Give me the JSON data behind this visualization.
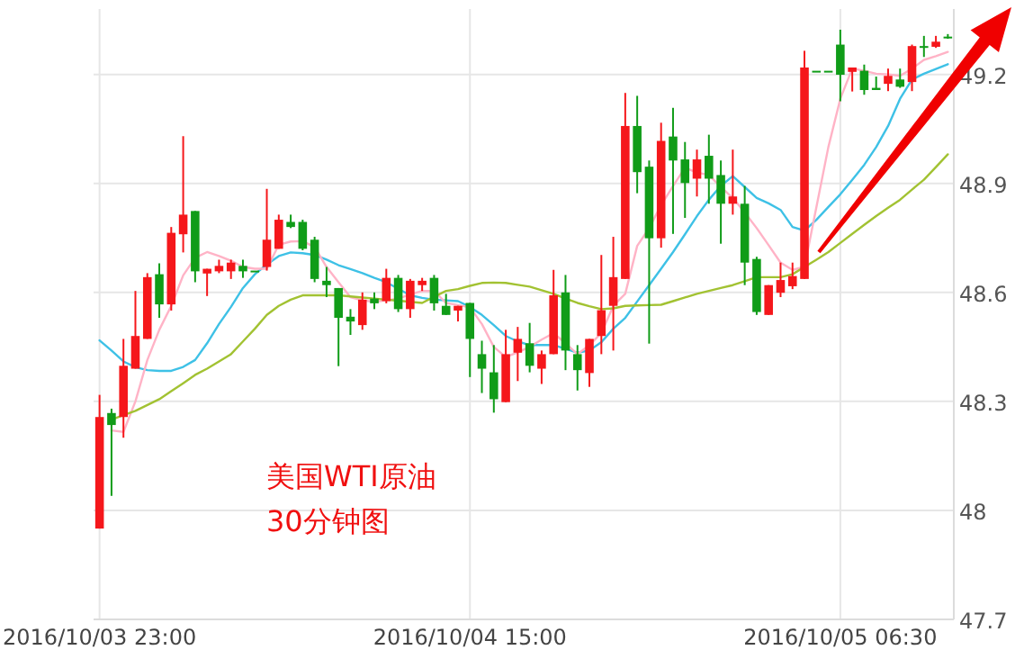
{
  "chart_data": {
    "type": "candlestick",
    "categories": [
      "2016/10/03 23:00",
      null,
      null,
      null,
      null,
      null,
      null,
      null,
      null,
      null,
      null,
      null,
      null,
      null,
      null,
      null,
      null,
      null,
      null,
      null,
      null,
      null,
      null,
      null,
      null,
      null,
      null,
      null,
      null,
      null,
      null,
      "2016/10/04 15:00",
      null,
      null,
      null,
      null,
      null,
      null,
      null,
      null,
      null,
      null,
      null,
      null,
      null,
      null,
      null,
      null,
      null,
      null,
      null,
      null,
      null,
      null,
      null,
      null,
      null,
      null,
      null,
      null,
      null,
      null,
      "2016/10/05 06:30",
      null,
      null,
      null,
      null,
      null,
      null,
      null,
      null,
      null
    ],
    "ohlc": [
      [
        47.95,
        48.318,
        47.95,
        48.257
      ],
      [
        48.268,
        48.28,
        48.04,
        48.235
      ],
      [
        48.257,
        48.472,
        48.2,
        48.398
      ],
      [
        48.39,
        48.604,
        48.39,
        48.48
      ],
      [
        48.472,
        48.653,
        48.472,
        48.642
      ],
      [
        48.65,
        48.68,
        48.53,
        48.567
      ],
      [
        48.567,
        48.78,
        48.55,
        48.764
      ],
      [
        48.76,
        49.03,
        48.71,
        48.814
      ],
      [
        48.824,
        48.824,
        48.628,
        48.658
      ],
      [
        48.652,
        48.665,
        48.59,
        48.665
      ],
      [
        48.658,
        48.69,
        48.653,
        48.673
      ],
      [
        48.658,
        48.69,
        48.637,
        48.682
      ],
      [
        48.673,
        48.69,
        48.64,
        48.658
      ],
      [
        48.66,
        48.66,
        48.66,
        48.66
      ],
      [
        48.67,
        48.885,
        48.66,
        48.745
      ],
      [
        48.72,
        48.814,
        48.72,
        48.8
      ],
      [
        48.794,
        48.814,
        48.777,
        48.78
      ],
      [
        48.794,
        48.8,
        48.716,
        48.72
      ],
      [
        48.745,
        48.753,
        48.628,
        48.637
      ],
      [
        48.632,
        48.67,
        48.587,
        48.62
      ],
      [
        48.612,
        48.612,
        48.397,
        48.53
      ],
      [
        48.533,
        48.554,
        48.483,
        48.52
      ],
      [
        48.51,
        48.6,
        48.497,
        48.58
      ],
      [
        48.583,
        48.6,
        48.554,
        48.57
      ],
      [
        48.576,
        48.665,
        48.57,
        48.64
      ],
      [
        48.64,
        48.648,
        48.546,
        48.554
      ],
      [
        48.554,
        48.637,
        48.53,
        48.632
      ],
      [
        48.62,
        48.64,
        48.604,
        48.632
      ],
      [
        48.64,
        48.648,
        48.55,
        48.57
      ],
      [
        48.563,
        48.596,
        48.538,
        48.538
      ],
      [
        48.55,
        48.563,
        48.52,
        48.563
      ],
      [
        48.571,
        48.571,
        48.367,
        48.472
      ],
      [
        48.43,
        48.467,
        48.323,
        48.39
      ],
      [
        48.38,
        48.455,
        48.269,
        48.306
      ],
      [
        48.298,
        48.497,
        48.298,
        48.43
      ],
      [
        48.434,
        48.505,
        48.356,
        48.472
      ],
      [
        48.46,
        48.516,
        48.38,
        48.398
      ],
      [
        48.39,
        48.44,
        48.348,
        48.43
      ],
      [
        48.43,
        48.662,
        48.43,
        48.592
      ],
      [
        48.6,
        48.648,
        48.386,
        48.44
      ],
      [
        48.43,
        48.455,
        48.33,
        48.386
      ],
      [
        48.378,
        48.472,
        48.34,
        48.472
      ],
      [
        48.48,
        48.703,
        48.43,
        48.551
      ],
      [
        48.563,
        48.753,
        48.44,
        48.642
      ],
      [
        48.637,
        49.149,
        48.637,
        49.058
      ],
      [
        49.058,
        49.141,
        48.873,
        48.931
      ],
      [
        48.946,
        48.963,
        48.459,
        48.749
      ],
      [
        48.749,
        49.067,
        48.723,
        49.017
      ],
      [
        49.029,
        49.108,
        48.761,
        48.963
      ],
      [
        48.966,
        49.014,
        48.805,
        48.901
      ],
      [
        48.913,
        48.993,
        48.864,
        48.966
      ],
      [
        48.976,
        49.034,
        48.844,
        48.913
      ],
      [
        48.923,
        48.963,
        48.734,
        48.844
      ],
      [
        48.844,
        48.993,
        48.814,
        48.864
      ],
      [
        48.844,
        48.893,
        48.62,
        48.682
      ],
      [
        48.692,
        48.698,
        48.538,
        48.546
      ],
      [
        48.538,
        48.62,
        48.538,
        48.62
      ],
      [
        48.599,
        48.682,
        48.587,
        48.634
      ],
      [
        48.617,
        48.682,
        48.609,
        48.645
      ],
      [
        48.637,
        49.265,
        48.637,
        49.219
      ],
      [
        49.21,
        49.21,
        49.21,
        49.21
      ],
      [
        49.21,
        49.21,
        49.21,
        49.21
      ],
      [
        49.282,
        49.323,
        49.126,
        49.199
      ],
      [
        49.207,
        49.219,
        49.153,
        49.219
      ],
      [
        49.21,
        49.227,
        49.144,
        49.157
      ],
      [
        49.163,
        49.194,
        49.157,
        49.157
      ],
      [
        49.174,
        49.216,
        49.154,
        49.196
      ],
      [
        49.186,
        49.216,
        49.163,
        49.166
      ],
      [
        49.179,
        49.282,
        49.154,
        49.278
      ],
      [
        49.278,
        49.306,
        49.248,
        49.273
      ],
      [
        49.276,
        49.306,
        49.273,
        49.29
      ],
      [
        49.304,
        49.311,
        49.298,
        49.3
      ]
    ],
    "colors": [
      "#f5171b",
      "#109c18",
      "#f5171b",
      "#f5171b",
      "#f5171b",
      "#109c18",
      "#f5171b",
      "#f5171b",
      "#109c18",
      "#f5171b",
      "#f5171b",
      "#f5171b",
      "#109c18",
      "#109c18",
      "#f5171b",
      "#f5171b",
      "#109c18",
      "#109c18",
      "#109c18",
      "#109c18",
      "#109c18",
      "#109c18",
      "#f5171b",
      "#109c18",
      "#f5171b",
      "#109c18",
      "#f5171b",
      "#f5171b",
      "#109c18",
      "#109c18",
      "#f5171b",
      "#109c18",
      "#109c18",
      "#109c18",
      "#f5171b",
      "#f5171b",
      "#109c18",
      "#f5171b",
      "#f5171b",
      "#109c18",
      "#109c18",
      "#f5171b",
      "#f5171b",
      "#f5171b",
      "#f5171b",
      "#109c18",
      "#109c18",
      "#f5171b",
      "#109c18",
      "#109c18",
      "#f5171b",
      "#109c18",
      "#109c18",
      "#f5171b",
      "#109c18",
      "#109c18",
      "#f5171b",
      "#f5171b",
      "#f5171b",
      "#f5171b",
      "#109c18",
      "#109c18",
      "#109c18",
      "#f5171b",
      "#109c18",
      "#109c18",
      "#f5171b",
      "#109c18",
      "#f5171b",
      "#109c18",
      "#f5171b",
      "#109c18"
    ],
    "series": [
      {
        "type": "line",
        "color": "#3ec1e6",
        "values": [
          48.468,
          48.44,
          48.41,
          48.394,
          48.386,
          48.384,
          48.384,
          48.395,
          48.414,
          48.46,
          48.513,
          48.56,
          48.612,
          48.65,
          48.677,
          48.7,
          48.71,
          48.708,
          48.703,
          48.69,
          48.675,
          48.664,
          48.653,
          48.64,
          48.628,
          48.61,
          48.592,
          48.585,
          48.58,
          48.578,
          48.576,
          48.56,
          48.538,
          48.51,
          48.48,
          48.465,
          48.455,
          48.455,
          48.455,
          48.445,
          48.434,
          48.44,
          48.463,
          48.5,
          48.53,
          48.575,
          48.62,
          48.665,
          48.711,
          48.76,
          48.81,
          48.855,
          48.893,
          48.92,
          48.89,
          48.86,
          48.845,
          48.827,
          48.78,
          48.77,
          48.8,
          48.835,
          48.87,
          48.91,
          48.951,
          49.0,
          49.058,
          49.133,
          49.186,
          49.202,
          49.215,
          49.228
        ]
      },
      {
        "type": "line",
        "color": "#ffb3c6",
        "values": [
          null,
          48.22,
          48.216,
          48.3,
          48.414,
          48.497,
          48.563,
          48.647,
          48.695,
          48.711,
          48.7,
          48.687,
          48.67,
          48.665,
          48.665,
          48.731,
          48.74,
          48.741,
          48.725,
          48.67,
          48.628,
          48.587,
          48.578,
          48.574,
          48.578,
          48.583,
          48.594,
          48.604,
          48.604,
          48.571,
          48.565,
          48.559,
          48.513,
          48.45,
          48.422,
          48.435,
          48.45,
          48.47,
          48.488,
          48.46,
          48.43,
          48.455,
          48.488,
          48.563,
          48.596,
          48.728,
          48.777,
          48.84,
          48.893,
          48.943,
          48.93,
          48.923,
          48.89,
          48.86,
          48.82,
          48.777,
          48.73,
          48.682,
          48.662,
          48.67,
          48.835,
          49.0,
          49.133,
          49.216,
          49.21,
          49.202,
          49.2,
          49.196,
          49.216,
          49.24,
          49.25,
          49.262
        ]
      },
      {
        "type": "line",
        "color": "#a2c232",
        "values": [
          null,
          48.25,
          48.262,
          48.274,
          48.29,
          48.306,
          48.328,
          48.35,
          48.373,
          48.39,
          48.41,
          48.43,
          48.465,
          48.5,
          48.538,
          48.563,
          48.58,
          48.592,
          48.592,
          48.592,
          48.592,
          48.589,
          48.586,
          48.583,
          48.58,
          48.577,
          48.574,
          48.571,
          48.588,
          48.604,
          48.609,
          48.618,
          48.626,
          48.627,
          48.626,
          48.621,
          48.616,
          48.606,
          48.596,
          48.583,
          48.571,
          48.562,
          48.554,
          48.556,
          48.563,
          48.564,
          48.565,
          48.566,
          48.576,
          48.586,
          48.596,
          48.604,
          48.612,
          48.62,
          48.631,
          48.642,
          48.642,
          48.642,
          48.65,
          48.67,
          48.69,
          48.711,
          48.736,
          48.761,
          48.786,
          48.81,
          48.833,
          48.855,
          48.883,
          48.91,
          48.945,
          48.98
        ]
      }
    ],
    "ylim": [
      47.7,
      49.38
    ],
    "yticks": [
      47.7,
      48,
      48.3,
      48.6,
      48.9,
      49.2
    ],
    "grid": true,
    "annotations": [
      "美国WTI原油",
      "30分钟图"
    ]
  }
}
